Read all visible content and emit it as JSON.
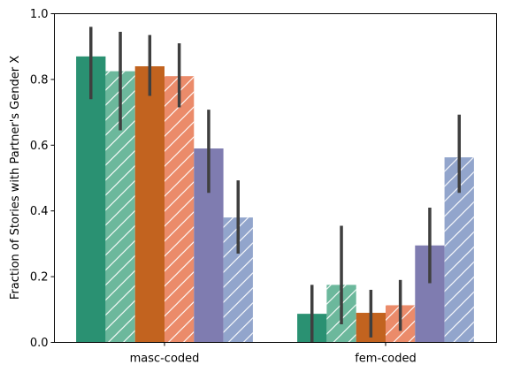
{
  "chart_data": {
    "type": "bar",
    "title": "",
    "xlabel": "",
    "ylabel": "Fraction of Stories with Partner's Gender X",
    "ylim": [
      0,
      1.0
    ],
    "yticks": [
      "0.0",
      "0.2",
      "0.4",
      "0.6",
      "0.8",
      "1.0"
    ],
    "categories": [
      "masc-coded",
      "fem-coded"
    ],
    "grid": false,
    "legend": "none",
    "series": [
      {
        "color": "#2a9172",
        "hatch": false,
        "values": [
          0.87,
          0.087
        ],
        "err_low": [
          0.74,
          0.0
        ],
        "err_high": [
          0.96,
          0.175
        ]
      },
      {
        "color": "#6cb89c",
        "hatch": true,
        "values": [
          0.825,
          0.175
        ],
        "err_low": [
          0.645,
          0.055
        ],
        "err_high": [
          0.945,
          0.355
        ]
      },
      {
        "color": "#c2631f",
        "hatch": false,
        "values": [
          0.84,
          0.09
        ],
        "err_low": [
          0.75,
          0.015
        ],
        "err_high": [
          0.935,
          0.16
        ]
      },
      {
        "color": "#eb8b6a",
        "hatch": true,
        "values": [
          0.81,
          0.113
        ],
        "err_low": [
          0.715,
          0.035
        ],
        "err_high": [
          0.91,
          0.19
        ]
      },
      {
        "color": "#7f7cb0",
        "hatch": false,
        "values": [
          0.59,
          0.295
        ],
        "err_low": [
          0.455,
          0.18
        ],
        "err_high": [
          0.708,
          0.41
        ]
      },
      {
        "color": "#92a5cc",
        "hatch": true,
        "values": [
          0.38,
          0.563
        ],
        "err_low": [
          0.27,
          0.455
        ],
        "err_high": [
          0.493,
          0.693
        ]
      }
    ]
  }
}
